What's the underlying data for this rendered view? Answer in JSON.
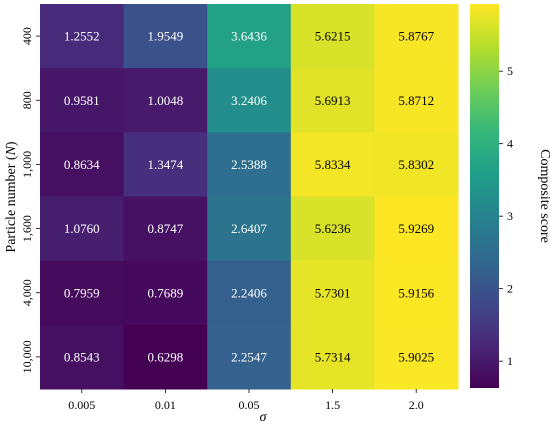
{
  "chart_data": {
    "type": "heatmap",
    "x_categories": [
      "0.005",
      "0.01",
      "0.05",
      "1.5",
      "2.0"
    ],
    "y_categories": [
      "400",
      "800",
      "1,000",
      "1,600",
      "4,000",
      "10,000"
    ],
    "values": [
      [
        1.2552,
        1.9549,
        3.6436,
        5.6215,
        5.8767
      ],
      [
        0.9581,
        1.0048,
        3.2406,
        5.6913,
        5.8712
      ],
      [
        0.8634,
        1.3474,
        2.5388,
        5.8334,
        5.8302
      ],
      [
        1.076,
        0.8747,
        2.6407,
        5.6236,
        5.9269
      ],
      [
        0.7959,
        0.7689,
        2.2406,
        5.7301,
        5.9156
      ],
      [
        0.8543,
        0.6298,
        2.2547,
        5.7314,
        5.9025
      ]
    ],
    "value_labels": [
      [
        "1.2552",
        "1.9549",
        "3.6436",
        "5.6215",
        "5.8767"
      ],
      [
        "0.9581",
        "1.0048",
        "3.2406",
        "5.6913",
        "5.8712"
      ],
      [
        "0.8634",
        "1.3474",
        "2.5388",
        "5.8334",
        "5.8302"
      ],
      [
        "1.0760",
        "0.8747",
        "2.6407",
        "5.6236",
        "5.9269"
      ],
      [
        "0.7959",
        "0.7689",
        "2.2406",
        "5.7301",
        "5.9156"
      ],
      [
        "0.8543",
        "0.6298",
        "2.2547",
        "5.7314",
        "5.9025"
      ]
    ],
    "xlabel": "σ",
    "ylabel_prefix": "Particle number (",
    "ylabel_var": "N",
    "ylabel_suffix": ")",
    "colorbar": {
      "label": "Composite score",
      "range": [
        0.6298,
        5.9269
      ],
      "ticks": [
        1,
        2,
        3,
        4,
        5
      ],
      "tick_labels": [
        "1",
        "2",
        "3",
        "4",
        "5"
      ],
      "colormap": "viridis"
    },
    "colormap_stops": [
      "#440154",
      "#482878",
      "#3e4989",
      "#31688e",
      "#26828e",
      "#1f9e89",
      "#35b779",
      "#6ece58",
      "#b5de2b",
      "#fde725"
    ],
    "text_colors": {
      "dark": "#000000",
      "light": "#ffffff"
    }
  }
}
